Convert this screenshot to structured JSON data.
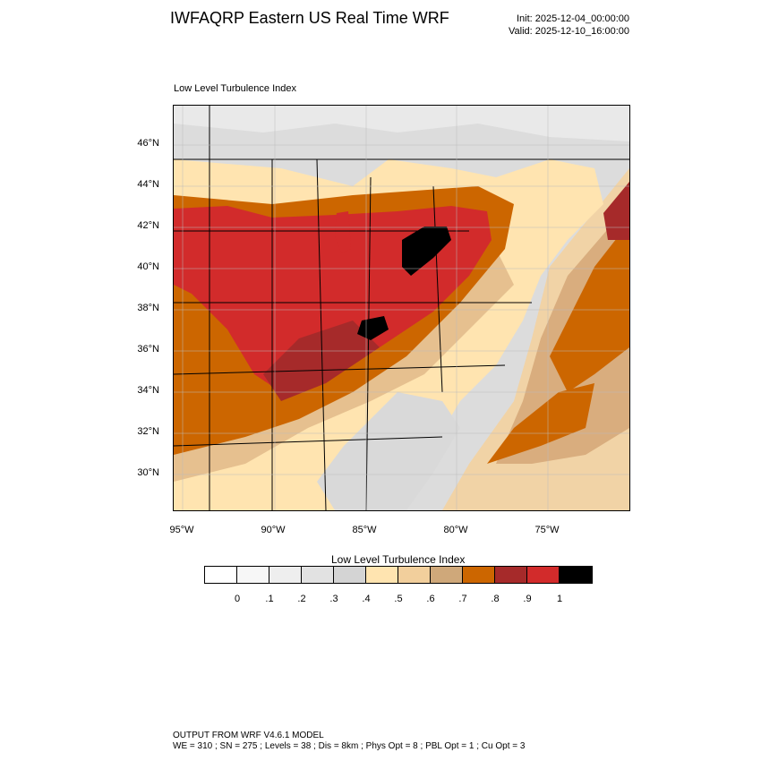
{
  "header": {
    "title": "IWFAQRP Eastern US Real Time WRF",
    "init": "Init: 2025-12-04_00:00:00",
    "valid": "Valid: 2025-12-10_16:00:00"
  },
  "map": {
    "subtitle": "Low Level Turbulence Index",
    "lat_labels": [
      "46°N",
      "44°N",
      "42°N",
      "40°N",
      "38°N",
      "36°N",
      "34°N",
      "32°N",
      "30°N"
    ],
    "lon_labels": [
      "95°W",
      "90°W",
      "85°W",
      "80°W",
      "75°W"
    ],
    "background_color": "#e0e0e0",
    "field_colors": {
      "low": "#ffe4b0",
      "mid": "#e8c290",
      "tan": "#cfa87a",
      "orange": "#cc6600",
      "darkred": "#a62a2a",
      "red": "#d22b2b",
      "black": "#000000"
    }
  },
  "colorbar": {
    "title": "Low Level Turbulence Index",
    "colors": [
      "#ffffff",
      "#f7f7f7",
      "#eeeeee",
      "#e2e2e2",
      "#d4d4d4",
      "#ffe4b0",
      "#f2cf9c",
      "#cfa87a",
      "#cc6600",
      "#a62a2a",
      "#d22b2b",
      "#000000"
    ],
    "labels": [
      "0",
      ".1",
      ".2",
      ".3",
      ".4",
      ".5",
      ".6",
      ".7",
      ".8",
      ".9",
      "1"
    ]
  },
  "footer": {
    "line1": "OUTPUT FROM WRF V4.6.1 MODEL",
    "line2": "WE = 310 ; SN = 275 ; Levels = 38 ; Dis = 8km ; Phys Opt = 8 ; PBL Opt = 1 ; Cu Opt = 3"
  }
}
